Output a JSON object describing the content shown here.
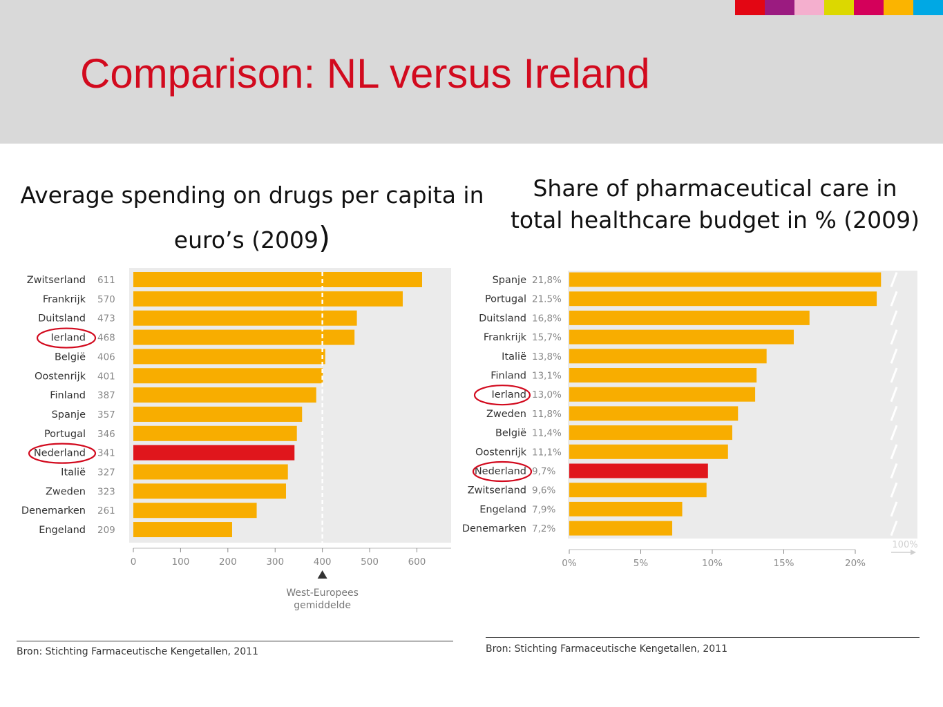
{
  "slide": {
    "title": "Comparison: NL versus Ireland",
    "header_colors": [
      "#e30613",
      "#9b1b80",
      "#f4afce",
      "#dcd800",
      "#d4005a",
      "#fbb400",
      "#00a8e4"
    ]
  },
  "left": {
    "title_main": "Average spending on drugs per capita in euro’s (2009",
    "title_close": ")",
    "source": "Bron: Stichting Farmaceutische Kengetallen, 2011"
  },
  "right": {
    "title": "Share of pharmaceutical care in total healthcare budget in % (2009)",
    "source": "Bron: Stichting Farmaceutische Kengetallen, 2011"
  },
  "colors": {
    "bar": "#f8ad00",
    "highlight_bar": "#e0161c",
    "plot_bg": "#ebebeb",
    "circle": "#d20a1e"
  },
  "chart_data": [
    {
      "type": "bar",
      "orientation": "horizontal",
      "categories": [
        "Zwitserland",
        "Frankrijk",
        "Duitsland",
        "Ierland",
        "België",
        "Oostenrijk",
        "Finland",
        "Spanje",
        "Portugal",
        "Nederland",
        "Italië",
        "Zweden",
        "Denemarken",
        "Engeland"
      ],
      "values": [
        611,
        570,
        473,
        468,
        406,
        401,
        387,
        357,
        346,
        341,
        327,
        323,
        261,
        209
      ],
      "value_labels": [
        "611",
        "570",
        "473",
        "468",
        "406",
        "401",
        "387",
        "357",
        "346",
        "341",
        "327",
        "323",
        "261",
        "209"
      ],
      "highlight": "Nederland",
      "circled": [
        "Ierland",
        "Nederland"
      ],
      "xlim": [
        0,
        660
      ],
      "xticks": [
        0,
        100,
        200,
        300,
        400,
        500,
        600
      ],
      "reference_line": {
        "value": 400,
        "label_line1": "West-Europees",
        "label_line2": "gemiddelde"
      }
    },
    {
      "type": "bar",
      "orientation": "horizontal",
      "categories": [
        "Spanje",
        "Portugal",
        "Duitsland",
        "Frankrijk",
        "Italië",
        "Finland",
        "Ierland",
        "Zweden",
        "België",
        "Oostenrijk",
        "Nederland",
        "Zwitserland",
        "Engeland",
        "Denemarken"
      ],
      "category_labels": [
        "Spanje",
        "Portugal",
        "Duitsland",
        "Frankrijk",
        "Italië",
        "Finland",
        "Ierland",
        "Zweden",
        "België",
        "Oostenrijk",
        "Nederland",
        "Zwitserland",
        "Engeland",
        "Denemarken"
      ],
      "values": [
        21.8,
        21.5,
        16.8,
        15.7,
        13.8,
        13.1,
        13.0,
        11.8,
        11.4,
        11.1,
        9.7,
        9.6,
        7.9,
        7.2
      ],
      "value_labels": [
        "21,8%",
        "21.5%",
        "16,8%",
        "15,7%",
        "13,8%",
        "13,1%",
        "13,0%",
        "11,8%",
        "11,4%",
        "11,1%",
        "9,7%",
        "9,6%",
        "7,9%",
        "7,2%"
      ],
      "highlight": "Nederland",
      "circled": [
        "Ierland",
        "Nederland"
      ],
      "xlim": [
        0,
        24.5
      ],
      "xticks": [
        0,
        5,
        10,
        15,
        20
      ],
      "xtick_labels": [
        "0%",
        "5%",
        "10%",
        "15%",
        "20%"
      ],
      "axis_end_label": "100%"
    }
  ]
}
